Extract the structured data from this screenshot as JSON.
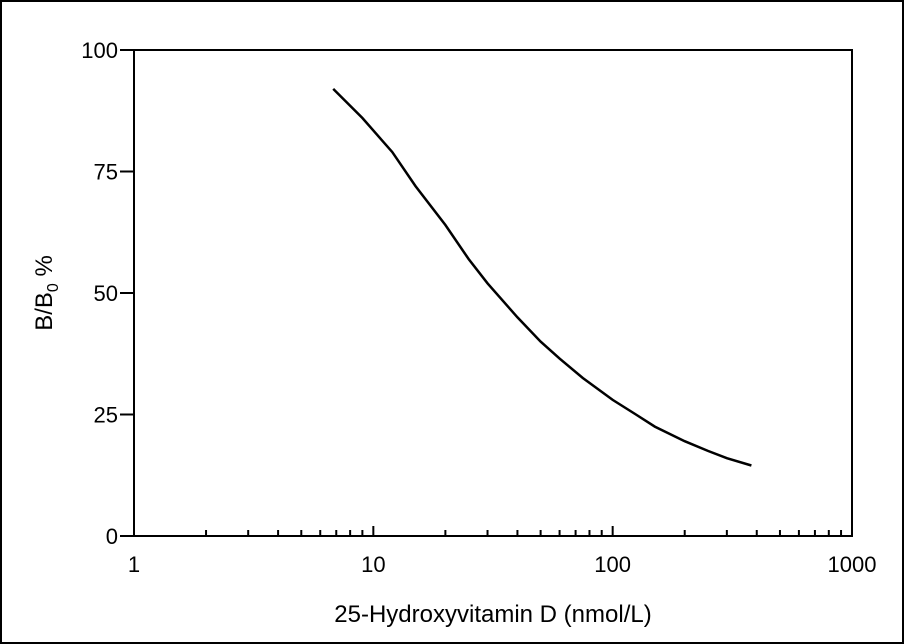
{
  "chart_data": {
    "type": "line",
    "title": "",
    "xlabel": "25-Hydroxyvitamin D (nmol/L)",
    "ylabel_main": "B/B",
    "ylabel_sub": "0",
    "ylabel_suffix": " %",
    "x_scale": "log",
    "xlim": [
      1,
      1000
    ],
    "ylim": [
      0,
      100
    ],
    "x_ticks": [
      1,
      10,
      100,
      1000
    ],
    "x_tick_labels": [
      "1",
      "10",
      "100",
      "1000"
    ],
    "y_ticks": [
      0,
      25,
      50,
      75,
      100
    ],
    "y_tick_labels": [
      "0",
      "25",
      "50",
      "75",
      "100"
    ],
    "grid": false,
    "colors": {
      "line": "#000000",
      "axis": "#000000"
    },
    "series": [
      {
        "x": [
          6.8,
          9,
          12,
          15,
          20,
          25,
          30,
          40,
          50,
          60,
          75,
          100,
          125,
          150,
          200,
          250,
          300,
          380
        ],
        "y": [
          92,
          86,
          79,
          72,
          64,
          57,
          52,
          45,
          40,
          36.5,
          32.5,
          28,
          25,
          22.5,
          19.5,
          17.5,
          16,
          14.5
        ]
      }
    ]
  }
}
